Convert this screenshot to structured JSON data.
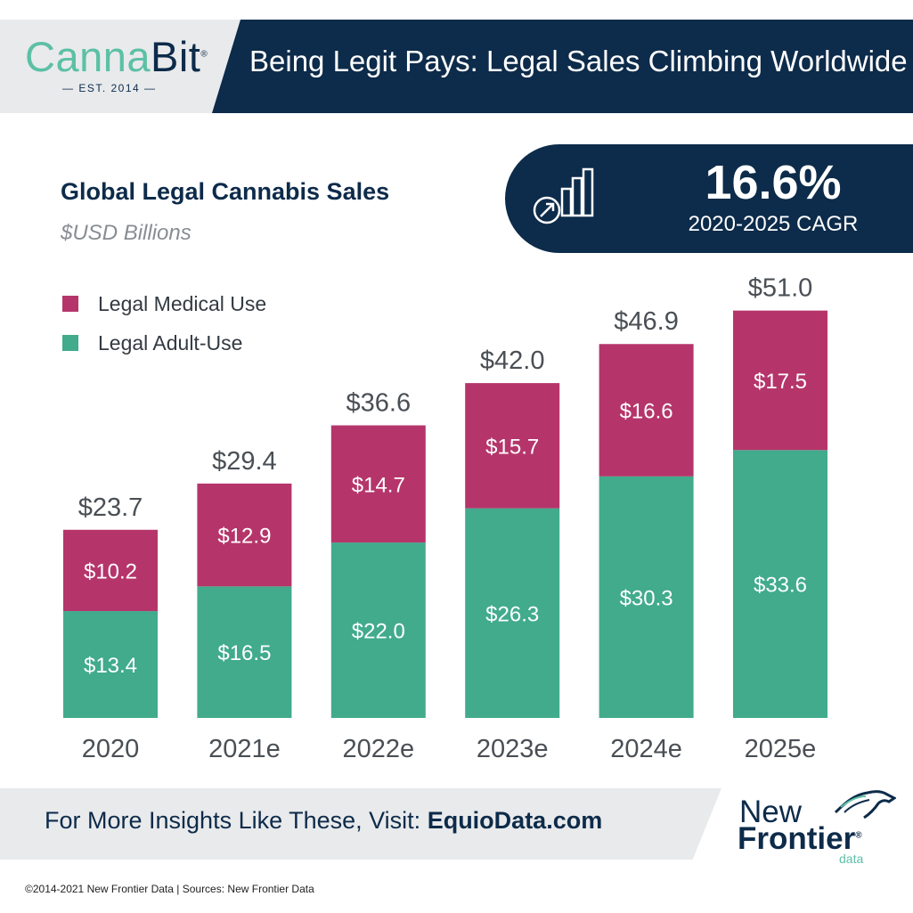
{
  "header": {
    "logo_part1": "Canna",
    "logo_part2": "Bit",
    "logo_mark": "®",
    "est": "— EST. 2014 —",
    "headline": "Being Legit Pays: Legal Sales Climbing Worldwide"
  },
  "callout": {
    "value": "16.6%",
    "label": "2020-2025 CAGR",
    "icon": "growth-chart-icon"
  },
  "footer": {
    "cta_prefix": "For More Insights Like These, Visit: ",
    "cta_link": "EquioData.com",
    "brand_line1": "New",
    "brand_line2": "Frontier",
    "brand_mark": "®",
    "brand_line3": "data",
    "copyright": "©2014-2021  New Frontier Data | Sources: New Frontier Data"
  },
  "colors": {
    "medical": "#b5356b",
    "adult": "#41ab8c",
    "navy": "#0d2b4a",
    "mint": "#5cc0a5"
  },
  "chart_data": {
    "type": "bar",
    "stacked": true,
    "title": "Global Legal Cannabis Sales",
    "subtitle": "$USD Billions",
    "categories": [
      "2020",
      "2021e",
      "2022e",
      "2023e",
      "2024e",
      "2025e"
    ],
    "series": [
      {
        "name": "Legal Adult-Use",
        "values": [
          13.4,
          16.5,
          22.0,
          26.3,
          30.3,
          33.6
        ],
        "labels": [
          "$13.4",
          "$16.5",
          "$22.0",
          "$26.3",
          "$30.3",
          "$33.6"
        ]
      },
      {
        "name": "Legal Medical Use",
        "values": [
          10.2,
          12.9,
          14.7,
          15.7,
          16.6,
          17.5
        ],
        "labels": [
          "$10.2",
          "$12.9",
          "$14.7",
          "$15.7",
          "$16.6",
          "$17.5"
        ]
      }
    ],
    "totals": [
      23.7,
      29.4,
      36.6,
      42.0,
      46.9,
      51.0
    ],
    "total_labels": [
      "$23.7",
      "$29.4",
      "$36.6",
      "$42.0",
      "$46.9",
      "$51.0"
    ],
    "legend": [
      "Legal Medical Use",
      "Legal Adult-Use"
    ],
    "legend_position": "top-left",
    "grid": false,
    "ylim": [
      0,
      51.0
    ]
  }
}
